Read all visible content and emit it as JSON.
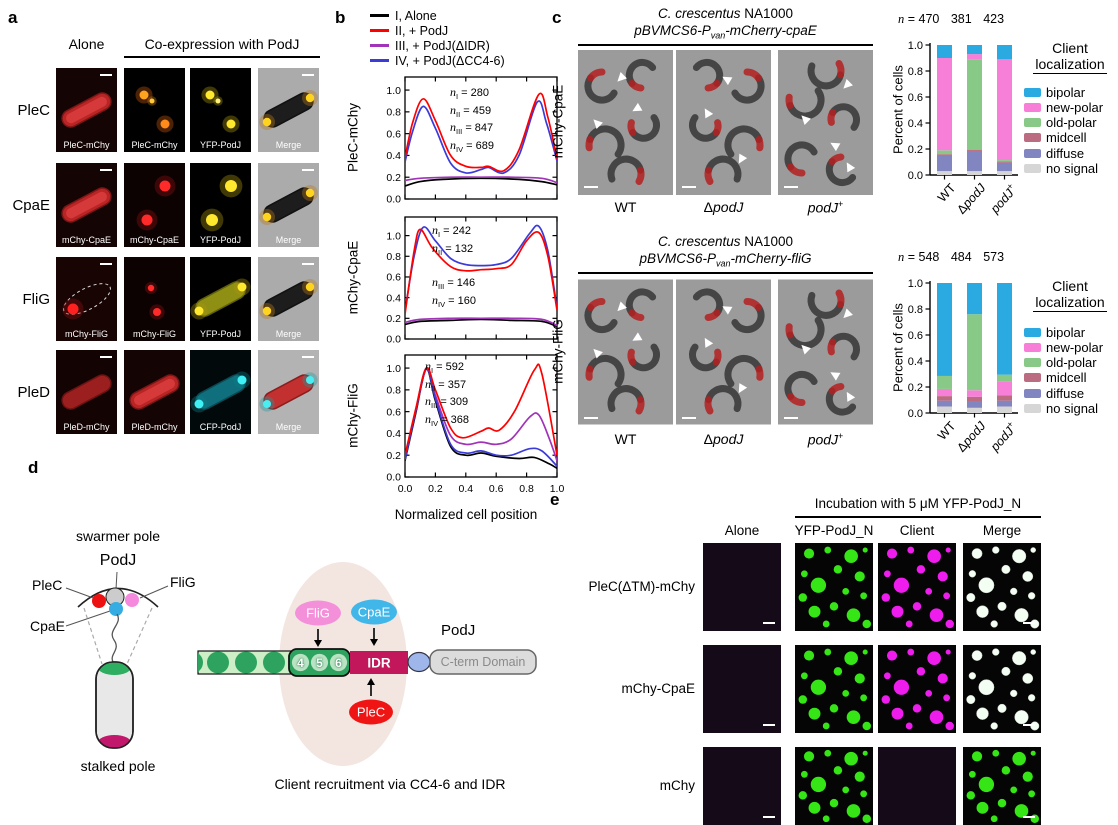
{
  "panel_labels": {
    "a": "a",
    "b": "b",
    "c": "c",
    "d": "d",
    "e": "e"
  },
  "panel_a": {
    "header_alone": "Alone",
    "header_coexpression": "Co-expression with PodJ",
    "rows": [
      {
        "label": "PleC",
        "tiles": [
          {
            "caption": "PleC-mChy",
            "type": "rod-red",
            "scalebar": true
          },
          {
            "caption": "PleC-mChy",
            "type": "foci-orange",
            "scalebar": false
          },
          {
            "caption": "YFP-PodJ",
            "type": "foci-yellow",
            "scalebar": false
          },
          {
            "caption": "Merge",
            "type": "merge-yellow",
            "scalebar": true
          }
        ]
      },
      {
        "label": "CpaE",
        "tiles": [
          {
            "caption": "mChy-CpaE",
            "type": "rod-red",
            "scalebar": true
          },
          {
            "caption": "mChy-CpaE",
            "type": "foci-red",
            "scalebar": false
          },
          {
            "caption": "YFP-PodJ",
            "type": "foci-yellow-big",
            "scalebar": false
          },
          {
            "caption": "Merge",
            "type": "merge-yellow",
            "scalebar": true
          }
        ]
      },
      {
        "label": "FliG",
        "tiles": [
          {
            "caption": "mChy-FliG",
            "type": "focus-red-dashed",
            "scalebar": true
          },
          {
            "caption": "mChy-FliG",
            "type": "foci-red-small",
            "scalebar": false
          },
          {
            "caption": "YFP-PodJ",
            "type": "rod-yellow",
            "scalebar": false
          },
          {
            "caption": "Merge",
            "type": "merge-yellow",
            "scalebar": true
          }
        ]
      },
      {
        "label": "PleD",
        "tiles": [
          {
            "caption": "PleD-mChy",
            "type": "rod-red-dim",
            "scalebar": true
          },
          {
            "caption": "PleD-mChy",
            "type": "rod-red",
            "scalebar": false
          },
          {
            "caption": "CFP-PodJ",
            "type": "rod-cyan",
            "scalebar": false
          },
          {
            "caption": "Merge",
            "type": "merge-red-cyan",
            "scalebar": true
          }
        ]
      }
    ]
  },
  "panel_b": {
    "legend": [
      {
        "label": "I, Alone",
        "color": "#000000"
      },
      {
        "label": "II, + PodJ",
        "color": "#ff0000"
      },
      {
        "label": "III, + PodJ(ΔIDR)",
        "color": "#a033b8"
      },
      {
        "label": "IV, + PodJ(ΔCC4-6)",
        "color": "#3b3bd8"
      }
    ],
    "xlabel": "Normalized cell position"
  },
  "panel_c": {
    "strain_title": {
      "italic": "C. crescentus",
      "normal": " NA1000"
    },
    "blocks": [
      {
        "plasmid": {
          "pre": "pBVMCS6-P",
          "sub": "van",
          "post": "-mCherry-cpaE"
        },
        "row_label": "mChy-CpaE"
      },
      {
        "plasmid": {
          "pre": "pBVMCS6-P",
          "sub": "van",
          "post": "-mCherry-fliG"
        },
        "row_label": "mChy-FliG"
      }
    ],
    "categories": [
      {
        "normal": "WT",
        "italic": "",
        "sup": ""
      },
      {
        "normal": "Δ",
        "italic": "podJ",
        "sup": ""
      },
      {
        "normal": "",
        "italic": "podJ",
        "sup": "+"
      }
    ],
    "legend_title_line1": "Client",
    "legend_title_line2": "localization",
    "legend_items": [
      {
        "label": "bipolar",
        "color": "#2BA9E1"
      },
      {
        "label": "new-polar",
        "color": "#F77FD7"
      },
      {
        "label": "old-polar",
        "color": "#88C987"
      },
      {
        "label": "midcell",
        "color": "#BC6C80"
      },
      {
        "label": "diffuse",
        "color": "#8186C0"
      },
      {
        "label": "no signal",
        "color": "#D6D6D6"
      }
    ],
    "ylabel": "Percent of cells"
  },
  "panel_d": {
    "swarmer_pole": "swarmer pole",
    "stalked_pole": "stalked pole",
    "podj_top": "PodJ",
    "plec_label": "PleC",
    "flig_label": "FliG",
    "cpae_label": "CpaE",
    "bubble_flig": "FliG",
    "bubble_cpae": "CpaE",
    "bubble_plec": "PleC",
    "cc_numbers": [
      "4",
      "5",
      "6"
    ],
    "idr_label": "IDR",
    "podj_right": "PodJ",
    "cterm_label": "C-term Domain",
    "caption": "Client recruitment via CC4-6 and IDR"
  },
  "panel_e": {
    "title": "Incubation with 5 μM YFP-PodJ_N",
    "col_headers": [
      "Alone",
      "YFP-PodJ_N",
      "Client",
      "Merge"
    ],
    "rows": [
      {
        "label": "PleC(ΔTM)-mChy",
        "tiles": [
          "dark",
          "drops-green",
          "drops-magenta",
          "drops-white"
        ]
      },
      {
        "label": "mChy-CpaE",
        "tiles": [
          "dark",
          "drops-green",
          "drops-magenta",
          "drops-white"
        ]
      },
      {
        "label": "mChy",
        "tiles": [
          "dark",
          "drops-green",
          "dark",
          "drops-green"
        ]
      }
    ]
  },
  "chart_data": [
    {
      "id": "profile-plec",
      "type": "line",
      "title": "",
      "xlabel": "Normalized cell position",
      "ylabel": "PleC-mChy",
      "xlim": [
        0,
        1
      ],
      "ylim": [
        0,
        1.12
      ],
      "xticks": [
        0.0,
        0.2,
        0.4,
        0.6,
        0.8,
        1.0
      ],
      "yticks": [
        0.0,
        0.2,
        0.4,
        0.6,
        0.8,
        1.0
      ],
      "annotations": [
        {
          "sub": "I",
          "text": "= 280"
        },
        {
          "sub": "II",
          "text": "= 459"
        },
        {
          "sub": "III",
          "text": "= 847"
        },
        {
          "sub": "IV",
          "text": "= 689"
        }
      ],
      "series": [
        {
          "name": "I, Alone",
          "color": "#000000",
          "x": [
            0,
            0.1,
            0.25,
            0.5,
            0.75,
            0.9,
            1
          ],
          "y": [
            0.12,
            0.16,
            0.18,
            0.19,
            0.18,
            0.16,
            0.13
          ]
        },
        {
          "name": "III, + PodJ(ΔIDR)",
          "color": "#a033b8",
          "x": [
            0,
            0.1,
            0.3,
            0.5,
            0.7,
            0.9,
            1
          ],
          "y": [
            0.17,
            0.19,
            0.2,
            0.2,
            0.2,
            0.19,
            0.15
          ]
        },
        {
          "name": "IV, + PodJ(ΔCC4-6)",
          "color": "#3b3bd8",
          "x": [
            0,
            0.05,
            0.12,
            0.2,
            0.3,
            0.4,
            0.5,
            0.55,
            0.65,
            0.75,
            0.87,
            0.93,
            1
          ],
          "y": [
            0.34,
            0.62,
            0.85,
            0.65,
            0.33,
            0.24,
            0.27,
            0.29,
            0.24,
            0.4,
            0.89,
            0.7,
            0.35
          ]
        },
        {
          "name": "II, + PodJ",
          "color": "#ff0000",
          "x": [
            0,
            0.05,
            0.12,
            0.2,
            0.3,
            0.4,
            0.5,
            0.55,
            0.65,
            0.75,
            0.88,
            0.94,
            1
          ],
          "y": [
            0.38,
            0.7,
            0.92,
            0.72,
            0.4,
            0.3,
            0.29,
            0.3,
            0.26,
            0.45,
            0.96,
            0.75,
            0.37
          ]
        }
      ]
    },
    {
      "id": "profile-cpae",
      "type": "line",
      "title": "",
      "xlabel": "Normalized cell position",
      "ylabel": "mChy-CpaE",
      "xlim": [
        0,
        1
      ],
      "ylim": [
        0,
        1.18
      ],
      "xticks": [
        0.0,
        0.2,
        0.4,
        0.6,
        0.8,
        1.0
      ],
      "yticks": [
        0.0,
        0.2,
        0.4,
        0.6,
        0.8,
        1.0
      ],
      "annotations_top": [
        {
          "sub": "I",
          "text": "= 242"
        },
        {
          "sub": "II",
          "text": "= 132"
        }
      ],
      "annotations_mid": [
        {
          "sub": "III",
          "text": "= 146"
        },
        {
          "sub": "IV",
          "text": "= 160"
        }
      ],
      "series": [
        {
          "name": "I, Alone",
          "color": "#000000",
          "x": [
            0,
            0.1,
            0.3,
            0.5,
            0.7,
            0.9,
            1
          ],
          "y": [
            0.14,
            0.17,
            0.18,
            0.19,
            0.18,
            0.17,
            0.12
          ]
        },
        {
          "name": "III, + PodJ(ΔIDR)",
          "color": "#a033b8",
          "x": [
            0,
            0.1,
            0.3,
            0.5,
            0.7,
            0.9,
            1
          ],
          "y": [
            0.16,
            0.19,
            0.2,
            0.2,
            0.2,
            0.19,
            0.13
          ]
        },
        {
          "name": "IV, + PodJ(ΔCC4-6)",
          "color": "#3b3bd8",
          "x": [
            0,
            0.06,
            0.12,
            0.2,
            0.3,
            0.4,
            0.5,
            0.6,
            0.7,
            0.82,
            0.88,
            0.94,
            1
          ],
          "y": [
            0.27,
            0.8,
            1.08,
            0.95,
            0.78,
            0.72,
            0.71,
            0.72,
            0.78,
            1.02,
            1.09,
            0.85,
            0.3
          ]
        },
        {
          "name": "II, + PodJ",
          "color": "#ff0000",
          "x": [
            0,
            0.06,
            0.1,
            0.18,
            0.3,
            0.4,
            0.5,
            0.6,
            0.7,
            0.8,
            0.88,
            0.94,
            1
          ],
          "y": [
            0.24,
            0.85,
            1.06,
            0.88,
            0.7,
            0.66,
            0.67,
            0.68,
            0.72,
            0.95,
            1.03,
            0.8,
            0.28
          ]
        }
      ]
    },
    {
      "id": "profile-flig",
      "type": "line",
      "title": "",
      "xlabel": "Normalized cell position",
      "ylabel": "mChy-FliG",
      "xlim": [
        0,
        1
      ],
      "ylim": [
        0,
        1.12
      ],
      "xticks": [
        0.0,
        0.2,
        0.4,
        0.6,
        0.8,
        1.0
      ],
      "yticks": [
        0.0,
        0.2,
        0.4,
        0.6,
        0.8,
        1.0
      ],
      "annotations": [
        {
          "sub": "I",
          "text": "= 592"
        },
        {
          "sub": "II",
          "text": "= 357"
        },
        {
          "sub": "III",
          "text": "= 309"
        },
        {
          "sub": "IV",
          "text": "= 368"
        }
      ],
      "series": [
        {
          "name": "I, Alone",
          "color": "#000000",
          "x": [
            0,
            0.07,
            0.14,
            0.2,
            0.3,
            0.4,
            0.5,
            0.6,
            0.75,
            0.85,
            0.95,
            1
          ],
          "y": [
            0.15,
            0.58,
            0.99,
            0.7,
            0.28,
            0.2,
            0.22,
            0.19,
            0.17,
            0.18,
            0.12,
            0.08
          ]
        },
        {
          "name": "III, + PodJ(ΔIDR)",
          "color": "#a033b8",
          "x": [
            0,
            0.07,
            0.14,
            0.2,
            0.3,
            0.4,
            0.5,
            0.6,
            0.7,
            0.82,
            0.88,
            0.95,
            1
          ],
          "y": [
            0.18,
            0.6,
            0.99,
            0.75,
            0.38,
            0.3,
            0.32,
            0.3,
            0.35,
            0.55,
            0.57,
            0.35,
            0.15
          ]
        },
        {
          "name": "IV, + PodJ(ΔCC4-6)",
          "color": "#3b3bd8",
          "x": [
            0,
            0.07,
            0.14,
            0.2,
            0.3,
            0.4,
            0.5,
            0.6,
            0.7,
            0.82,
            0.9,
            1
          ],
          "y": [
            0.16,
            0.6,
            1.0,
            0.72,
            0.3,
            0.22,
            0.24,
            0.2,
            0.2,
            0.26,
            0.24,
            0.1
          ]
        },
        {
          "name": "II, + PodJ",
          "color": "#ff0000",
          "x": [
            0,
            0.07,
            0.14,
            0.2,
            0.3,
            0.38,
            0.5,
            0.55,
            0.62,
            0.72,
            0.85,
            0.9,
            1
          ],
          "y": [
            0.2,
            0.62,
            1.0,
            0.8,
            0.45,
            0.36,
            0.42,
            0.45,
            0.43,
            0.6,
            0.98,
            0.95,
            0.2
          ]
        }
      ]
    },
    {
      "id": "loc-cpae",
      "type": "stacked-bar",
      "ylabel": "Percent of cells",
      "ylim": [
        0,
        1
      ],
      "n_label": {
        "prefix": "n = ",
        "values": [
          "470",
          "381",
          "423"
        ]
      },
      "categories": [
        "WT",
        "ΔpodJ",
        "podJ+"
      ],
      "stack_order": [
        "no signal",
        "diffuse",
        "midcell",
        "old-polar",
        "new-polar",
        "bipolar"
      ],
      "bars": [
        [
          0.03,
          0.125,
          0.005,
          0.03,
          0.71,
          0.1
        ],
        [
          0.03,
          0.155,
          0.01,
          0.695,
          0.04,
          0.07
        ],
        [
          0.03,
          0.065,
          0.01,
          0.01,
          0.775,
          0.11
        ]
      ]
    },
    {
      "id": "loc-flig",
      "type": "stacked-bar",
      "ylabel": "Percent of cells",
      "ylim": [
        0,
        1
      ],
      "n_label": {
        "prefix": "n = ",
        "values": [
          "548",
          "484",
          "573"
        ]
      },
      "categories": [
        "WT",
        "ΔpodJ",
        "podJ+"
      ],
      "stack_order": [
        "no signal",
        "diffuse",
        "midcell",
        "new-polar",
        "old-polar",
        "bipolar"
      ],
      "bars": [
        [
          0.05,
          0.045,
          0.035,
          0.055,
          0.1,
          0.715
        ],
        [
          0.04,
          0.045,
          0.04,
          0.05,
          0.585,
          0.24
        ],
        [
          0.05,
          0.045,
          0.04,
          0.11,
          0.05,
          0.705
        ]
      ]
    }
  ]
}
